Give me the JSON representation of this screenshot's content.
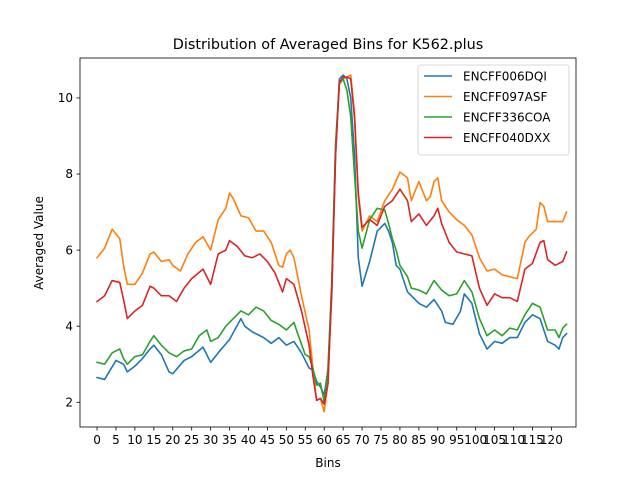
{
  "chart_data": {
    "type": "line",
    "title": "Distribution of Averaged Bins for K562.plus",
    "xlabel": "Bins",
    "ylabel": "Averaged Value",
    "xlim": [
      -4.5,
      126.5
    ],
    "ylim": [
      1.35,
      11.05
    ],
    "xticks": [
      0,
      5,
      10,
      15,
      20,
      25,
      30,
      35,
      40,
      45,
      50,
      55,
      60,
      65,
      70,
      75,
      80,
      85,
      90,
      95,
      100,
      105,
      110,
      115,
      120
    ],
    "yticks": [
      2,
      4,
      6,
      8,
      10
    ],
    "legend_position": "top-right",
    "grid": false,
    "series": [
      {
        "name": "ENCFF006DQI",
        "color": "#1f77b4",
        "anchors": [
          [
            0,
            2.65
          ],
          [
            2,
            2.6
          ],
          [
            5,
            3.1
          ],
          [
            7,
            3.0
          ],
          [
            8,
            2.8
          ],
          [
            10,
            2.95
          ],
          [
            12,
            3.15
          ],
          [
            14,
            3.4
          ],
          [
            15,
            3.5
          ],
          [
            17,
            3.25
          ],
          [
            19,
            2.8
          ],
          [
            20,
            2.75
          ],
          [
            23,
            3.1
          ],
          [
            25,
            3.2
          ],
          [
            28,
            3.45
          ],
          [
            30,
            3.05
          ],
          [
            32,
            3.3
          ],
          [
            35,
            3.65
          ],
          [
            38,
            4.2
          ],
          [
            39,
            4.0
          ],
          [
            41,
            3.85
          ],
          [
            44,
            3.7
          ],
          [
            46,
            3.55
          ],
          [
            48,
            3.7
          ],
          [
            50,
            3.5
          ],
          [
            52,
            3.6
          ],
          [
            54,
            3.3
          ],
          [
            56,
            2.9
          ],
          [
            57,
            2.85
          ],
          [
            58,
            2.55
          ],
          [
            59,
            2.4
          ],
          [
            60,
            2.2
          ],
          [
            61,
            2.85
          ],
          [
            62,
            4.8
          ],
          [
            63,
            8.5
          ],
          [
            64,
            10.5
          ],
          [
            65,
            10.6
          ],
          [
            66,
            10.5
          ],
          [
            67,
            10.0
          ],
          [
            68,
            8.5
          ],
          [
            69,
            5.8
          ],
          [
            70,
            5.05
          ],
          [
            72,
            5.7
          ],
          [
            74,
            6.5
          ],
          [
            76,
            6.7
          ],
          [
            77,
            6.5
          ],
          [
            78,
            6.2
          ],
          [
            79,
            5.6
          ],
          [
            80,
            5.5
          ],
          [
            82,
            4.9
          ],
          [
            85,
            4.6
          ],
          [
            87,
            4.5
          ],
          [
            89,
            4.7
          ],
          [
            91,
            4.4
          ],
          [
            92,
            4.1
          ],
          [
            94,
            4.05
          ],
          [
            96,
            4.4
          ],
          [
            97,
            4.85
          ],
          [
            99,
            4.6
          ],
          [
            101,
            3.8
          ],
          [
            103,
            3.4
          ],
          [
            105,
            3.6
          ],
          [
            107,
            3.55
          ],
          [
            109,
            3.7
          ],
          [
            111,
            3.7
          ],
          [
            113,
            4.1
          ],
          [
            115,
            4.3
          ],
          [
            117,
            4.2
          ],
          [
            119,
            3.6
          ],
          [
            121,
            3.5
          ],
          [
            122,
            3.4
          ],
          [
            123,
            3.7
          ],
          [
            124,
            3.8
          ]
        ]
      },
      {
        "name": "ENCFF097ASF",
        "color": "#ff7f0e",
        "anchors": [
          [
            0,
            5.8
          ],
          [
            2,
            6.05
          ],
          [
            4,
            6.55
          ],
          [
            6,
            6.3
          ],
          [
            7,
            5.6
          ],
          [
            8,
            5.1
          ],
          [
            10,
            5.1
          ],
          [
            12,
            5.4
          ],
          [
            14,
            5.9
          ],
          [
            15,
            5.95
          ],
          [
            17,
            5.7
          ],
          [
            19,
            5.75
          ],
          [
            20,
            5.6
          ],
          [
            22,
            5.45
          ],
          [
            24,
            5.9
          ],
          [
            26,
            6.2
          ],
          [
            28,
            6.35
          ],
          [
            30,
            6.0
          ],
          [
            32,
            6.8
          ],
          [
            34,
            7.1
          ],
          [
            35,
            7.5
          ],
          [
            36,
            7.35
          ],
          [
            38,
            6.9
          ],
          [
            40,
            6.85
          ],
          [
            42,
            6.5
          ],
          [
            44,
            6.5
          ],
          [
            46,
            6.2
          ],
          [
            48,
            5.6
          ],
          [
            49,
            5.55
          ],
          [
            50,
            5.9
          ],
          [
            51,
            6.0
          ],
          [
            52,
            5.8
          ],
          [
            54,
            4.8
          ],
          [
            56,
            3.9
          ],
          [
            57,
            2.9
          ],
          [
            58,
            2.05
          ],
          [
            59,
            2.1
          ],
          [
            60,
            1.75
          ],
          [
            61,
            2.5
          ],
          [
            62,
            5.0
          ],
          [
            63,
            8.7
          ],
          [
            64,
            10.35
          ],
          [
            65,
            10.5
          ],
          [
            66,
            10.55
          ],
          [
            67,
            10.6
          ],
          [
            68,
            9.6
          ],
          [
            69,
            7.4
          ],
          [
            70,
            6.5
          ],
          [
            72,
            6.9
          ],
          [
            74,
            6.75
          ],
          [
            76,
            7.3
          ],
          [
            78,
            7.6
          ],
          [
            80,
            8.05
          ],
          [
            82,
            7.9
          ],
          [
            83,
            7.3
          ],
          [
            85,
            7.8
          ],
          [
            87,
            7.3
          ],
          [
            88,
            7.4
          ],
          [
            89,
            7.8
          ],
          [
            90,
            7.9
          ],
          [
            91,
            7.3
          ],
          [
            93,
            7.0
          ],
          [
            95,
            6.8
          ],
          [
            97,
            6.65
          ],
          [
            99,
            6.4
          ],
          [
            101,
            5.8
          ],
          [
            103,
            5.45
          ],
          [
            105,
            5.5
          ],
          [
            107,
            5.35
          ],
          [
            109,
            5.3
          ],
          [
            111,
            5.25
          ],
          [
            113,
            6.2
          ],
          [
            114,
            6.35
          ],
          [
            116,
            6.55
          ],
          [
            117,
            7.25
          ],
          [
            118,
            7.15
          ],
          [
            119,
            6.75
          ],
          [
            121,
            6.75
          ],
          [
            123,
            6.75
          ],
          [
            124,
            7.0
          ]
        ]
      },
      {
        "name": "ENCFF336COA",
        "color": "#2ca02c",
        "anchors": [
          [
            0,
            3.05
          ],
          [
            2,
            3.0
          ],
          [
            4,
            3.3
          ],
          [
            6,
            3.4
          ],
          [
            7,
            3.15
          ],
          [
            8,
            3.0
          ],
          [
            10,
            3.2
          ],
          [
            12,
            3.25
          ],
          [
            14,
            3.6
          ],
          [
            15,
            3.75
          ],
          [
            17,
            3.5
          ],
          [
            19,
            3.3
          ],
          [
            21,
            3.2
          ],
          [
            23,
            3.35
          ],
          [
            25,
            3.4
          ],
          [
            27,
            3.75
          ],
          [
            29,
            3.9
          ],
          [
            30,
            3.6
          ],
          [
            32,
            3.7
          ],
          [
            34,
            4.0
          ],
          [
            36,
            4.2
          ],
          [
            38,
            4.4
          ],
          [
            40,
            4.3
          ],
          [
            42,
            4.5
          ],
          [
            44,
            4.4
          ],
          [
            46,
            4.15
          ],
          [
            48,
            4.05
          ],
          [
            50,
            3.9
          ],
          [
            52,
            4.1
          ],
          [
            53,
            3.8
          ],
          [
            55,
            3.25
          ],
          [
            56,
            3.2
          ],
          [
            57,
            2.9
          ],
          [
            58,
            2.45
          ],
          [
            59,
            2.5
          ],
          [
            60,
            2.0
          ],
          [
            61,
            2.9
          ],
          [
            62,
            5.2
          ],
          [
            63,
            8.8
          ],
          [
            64,
            10.4
          ],
          [
            65,
            10.5
          ],
          [
            66,
            10.2
          ],
          [
            67,
            9.5
          ],
          [
            68,
            8.0
          ],
          [
            69,
            6.5
          ],
          [
            70,
            6.05
          ],
          [
            72,
            6.8
          ],
          [
            74,
            7.1
          ],
          [
            76,
            7.05
          ],
          [
            77,
            6.7
          ],
          [
            78,
            6.3
          ],
          [
            79,
            6.0
          ],
          [
            80,
            5.6
          ],
          [
            82,
            5.3
          ],
          [
            83,
            5.0
          ],
          [
            85,
            4.95
          ],
          [
            87,
            4.85
          ],
          [
            89,
            5.2
          ],
          [
            91,
            4.95
          ],
          [
            93,
            4.8
          ],
          [
            95,
            4.85
          ],
          [
            97,
            5.2
          ],
          [
            99,
            4.9
          ],
          [
            101,
            4.2
          ],
          [
            103,
            3.75
          ],
          [
            105,
            3.9
          ],
          [
            107,
            3.75
          ],
          [
            109,
            3.95
          ],
          [
            111,
            3.9
          ],
          [
            113,
            4.3
          ],
          [
            115,
            4.6
          ],
          [
            117,
            4.5
          ],
          [
            119,
            3.9
          ],
          [
            121,
            3.9
          ],
          [
            122,
            3.7
          ],
          [
            123,
            3.95
          ],
          [
            124,
            4.05
          ]
        ]
      },
      {
        "name": "ENCFF040DXX",
        "color": "#d62728",
        "anchors": [
          [
            0,
            4.65
          ],
          [
            2,
            4.8
          ],
          [
            4,
            5.2
          ],
          [
            6,
            5.15
          ],
          [
            7,
            4.7
          ],
          [
            8,
            4.2
          ],
          [
            10,
            4.4
          ],
          [
            12,
            4.55
          ],
          [
            14,
            5.05
          ],
          [
            15,
            5.0
          ],
          [
            17,
            4.8
          ],
          [
            19,
            4.8
          ],
          [
            21,
            4.65
          ],
          [
            23,
            5.0
          ],
          [
            25,
            5.25
          ],
          [
            28,
            5.5
          ],
          [
            30,
            5.1
          ],
          [
            32,
            5.9
          ],
          [
            34,
            6.0
          ],
          [
            35,
            6.25
          ],
          [
            37,
            6.1
          ],
          [
            39,
            5.85
          ],
          [
            41,
            5.8
          ],
          [
            43,
            5.9
          ],
          [
            45,
            5.7
          ],
          [
            47,
            5.4
          ],
          [
            49,
            4.9
          ],
          [
            50,
            5.25
          ],
          [
            52,
            5.1
          ],
          [
            54,
            4.4
          ],
          [
            56,
            3.5
          ],
          [
            57,
            2.7
          ],
          [
            58,
            2.05
          ],
          [
            59,
            2.1
          ],
          [
            60,
            1.95
          ],
          [
            61,
            2.5
          ],
          [
            62,
            5.0
          ],
          [
            63,
            8.5
          ],
          [
            64,
            10.4
          ],
          [
            65,
            10.55
          ],
          [
            66,
            10.55
          ],
          [
            67,
            10.5
          ],
          [
            68,
            9.5
          ],
          [
            69,
            7.5
          ],
          [
            70,
            6.6
          ],
          [
            72,
            6.8
          ],
          [
            74,
            6.65
          ],
          [
            76,
            7.15
          ],
          [
            78,
            7.3
          ],
          [
            80,
            7.6
          ],
          [
            82,
            7.3
          ],
          [
            83,
            6.75
          ],
          [
            85,
            6.95
          ],
          [
            87,
            6.65
          ],
          [
            89,
            6.9
          ],
          [
            90,
            7.1
          ],
          [
            91,
            6.7
          ],
          [
            93,
            6.2
          ],
          [
            95,
            5.95
          ],
          [
            97,
            5.9
          ],
          [
            99,
            5.85
          ],
          [
            101,
            5.0
          ],
          [
            103,
            4.55
          ],
          [
            105,
            4.85
          ],
          [
            107,
            4.75
          ],
          [
            109,
            4.75
          ],
          [
            111,
            4.65
          ],
          [
            113,
            5.5
          ],
          [
            115,
            5.65
          ],
          [
            117,
            6.2
          ],
          [
            118,
            6.25
          ],
          [
            119,
            5.75
          ],
          [
            121,
            5.6
          ],
          [
            123,
            5.7
          ],
          [
            124,
            5.95
          ]
        ]
      }
    ]
  }
}
